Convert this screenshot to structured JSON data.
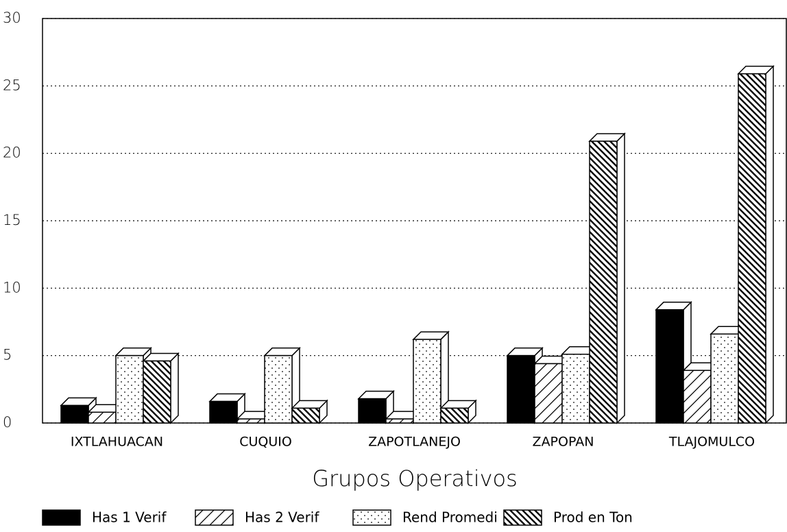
{
  "chart_data": {
    "type": "bar3d",
    "x_label": "Grupos Operativos",
    "categories": [
      "IXTLAHUACAN",
      "CUQUIO",
      "ZAPOTLANEJO",
      "ZAPOPAN",
      "TLAJOMULCO"
    ],
    "series": [
      {
        "name": "Has 1 Verif",
        "color": "#000000",
        "pattern": "solid",
        "values": [
          1.3,
          1.6,
          1.8,
          5.0,
          8.4
        ]
      },
      {
        "name": "Has 2 Verif",
        "color": "#000000",
        "pattern": "hatch",
        "values": [
          0.8,
          0.3,
          0.3,
          4.4,
          3.9
        ]
      },
      {
        "name": "Rend Promedi",
        "color": "#000000",
        "pattern": "dots",
        "values": [
          5.0,
          5.0,
          6.2,
          5.1,
          6.6
        ]
      },
      {
        "name": "Prod en Ton",
        "color": "#000000",
        "pattern": "dense-hatch",
        "values": [
          4.6,
          1.1,
          1.1,
          20.9,
          25.9
        ]
      }
    ],
    "ylim": [
      0,
      30
    ],
    "yticks": [
      0,
      5,
      10,
      15,
      20,
      25,
      30
    ],
    "grid": true,
    "legend": "bottom"
  }
}
